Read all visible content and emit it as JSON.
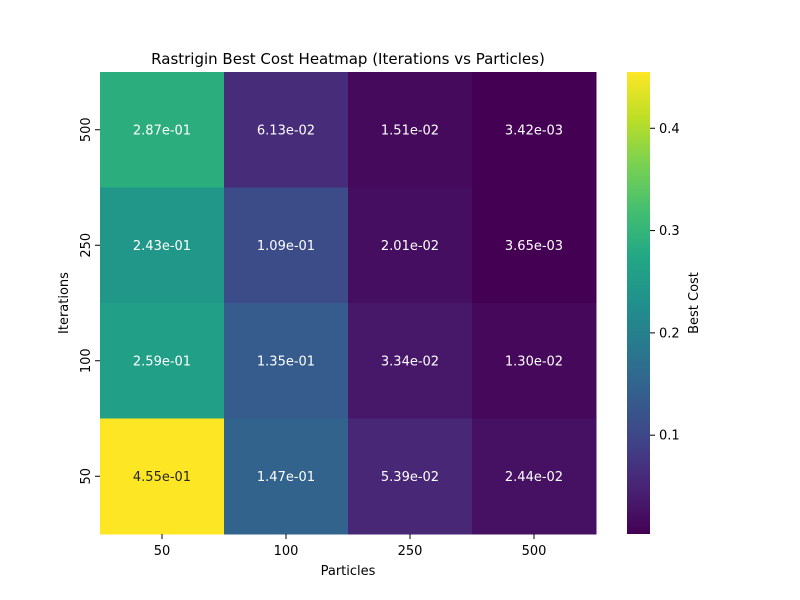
{
  "chart_data": {
    "type": "heatmap",
    "title": "Rastrigin Best Cost Heatmap (Iterations vs Particles)",
    "xlabel": "Particles",
    "ylabel": "Iterations",
    "x_categories": [
      "50",
      "100",
      "250",
      "500"
    ],
    "y_categories": [
      "500",
      "250",
      "100",
      "50"
    ],
    "values": [
      [
        0.287,
        0.0613,
        0.0151,
        0.00342
      ],
      [
        0.243,
        0.109,
        0.0201,
        0.00365
      ],
      [
        0.259,
        0.135,
        0.0334,
        0.013
      ],
      [
        0.455,
        0.147,
        0.0539,
        0.0244
      ]
    ],
    "cell_labels": [
      [
        "2.87e-01",
        "6.13e-02",
        "1.51e-02",
        "3.42e-03"
      ],
      [
        "2.43e-01",
        "1.09e-01",
        "2.01e-02",
        "3.65e-03"
      ],
      [
        "2.59e-01",
        "1.35e-01",
        "3.34e-02",
        "1.30e-02"
      ],
      [
        "4.55e-01",
        "1.47e-01",
        "5.39e-02",
        "2.44e-02"
      ]
    ],
    "colorbar": {
      "label": "Best Cost",
      "range": [
        0.00342,
        0.455
      ],
      "ticks": [
        0.1,
        0.2,
        0.3,
        0.4
      ],
      "tick_labels": [
        "0.1",
        "0.2",
        "0.3",
        "0.4"
      ],
      "colormap": "viridis"
    },
    "grid": false,
    "legend": "colorbar-right"
  }
}
